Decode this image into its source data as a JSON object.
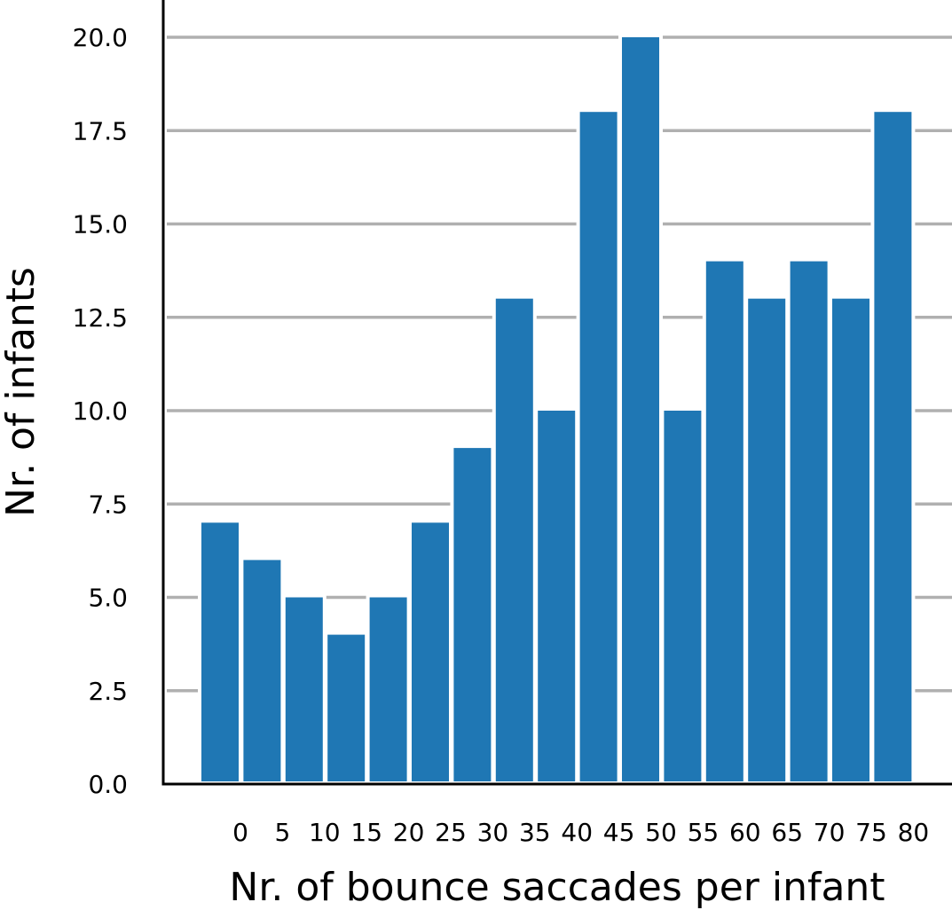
{
  "chart_data": {
    "type": "bar",
    "xlabel": "Nr. of bounce saccades per infant",
    "ylabel": "Nr. of infants",
    "ylim": [
      0,
      21
    ],
    "y_ticks": [
      "0.0",
      "2.5",
      "5.0",
      "7.5",
      "10.0",
      "12.5",
      "15.0",
      "17.5",
      "20.0"
    ],
    "y_tick_values": [
      0,
      2.5,
      5,
      7.5,
      10,
      12.5,
      15,
      17.5,
      20
    ],
    "x_tick_labels": [
      "0",
      "5",
      "10",
      "15",
      "20",
      "25",
      "30",
      "35",
      "40",
      "45",
      "50",
      "55",
      "60",
      "65",
      "70",
      "75",
      "80"
    ],
    "values": [
      7,
      6,
      5,
      4,
      5,
      7,
      9,
      13,
      10,
      18,
      20,
      10,
      14,
      13,
      14,
      13,
      18
    ],
    "grid": true,
    "colors": {
      "bar": "#1f77b4",
      "grid": "#b0b0b0",
      "axis": "#000000"
    }
  }
}
